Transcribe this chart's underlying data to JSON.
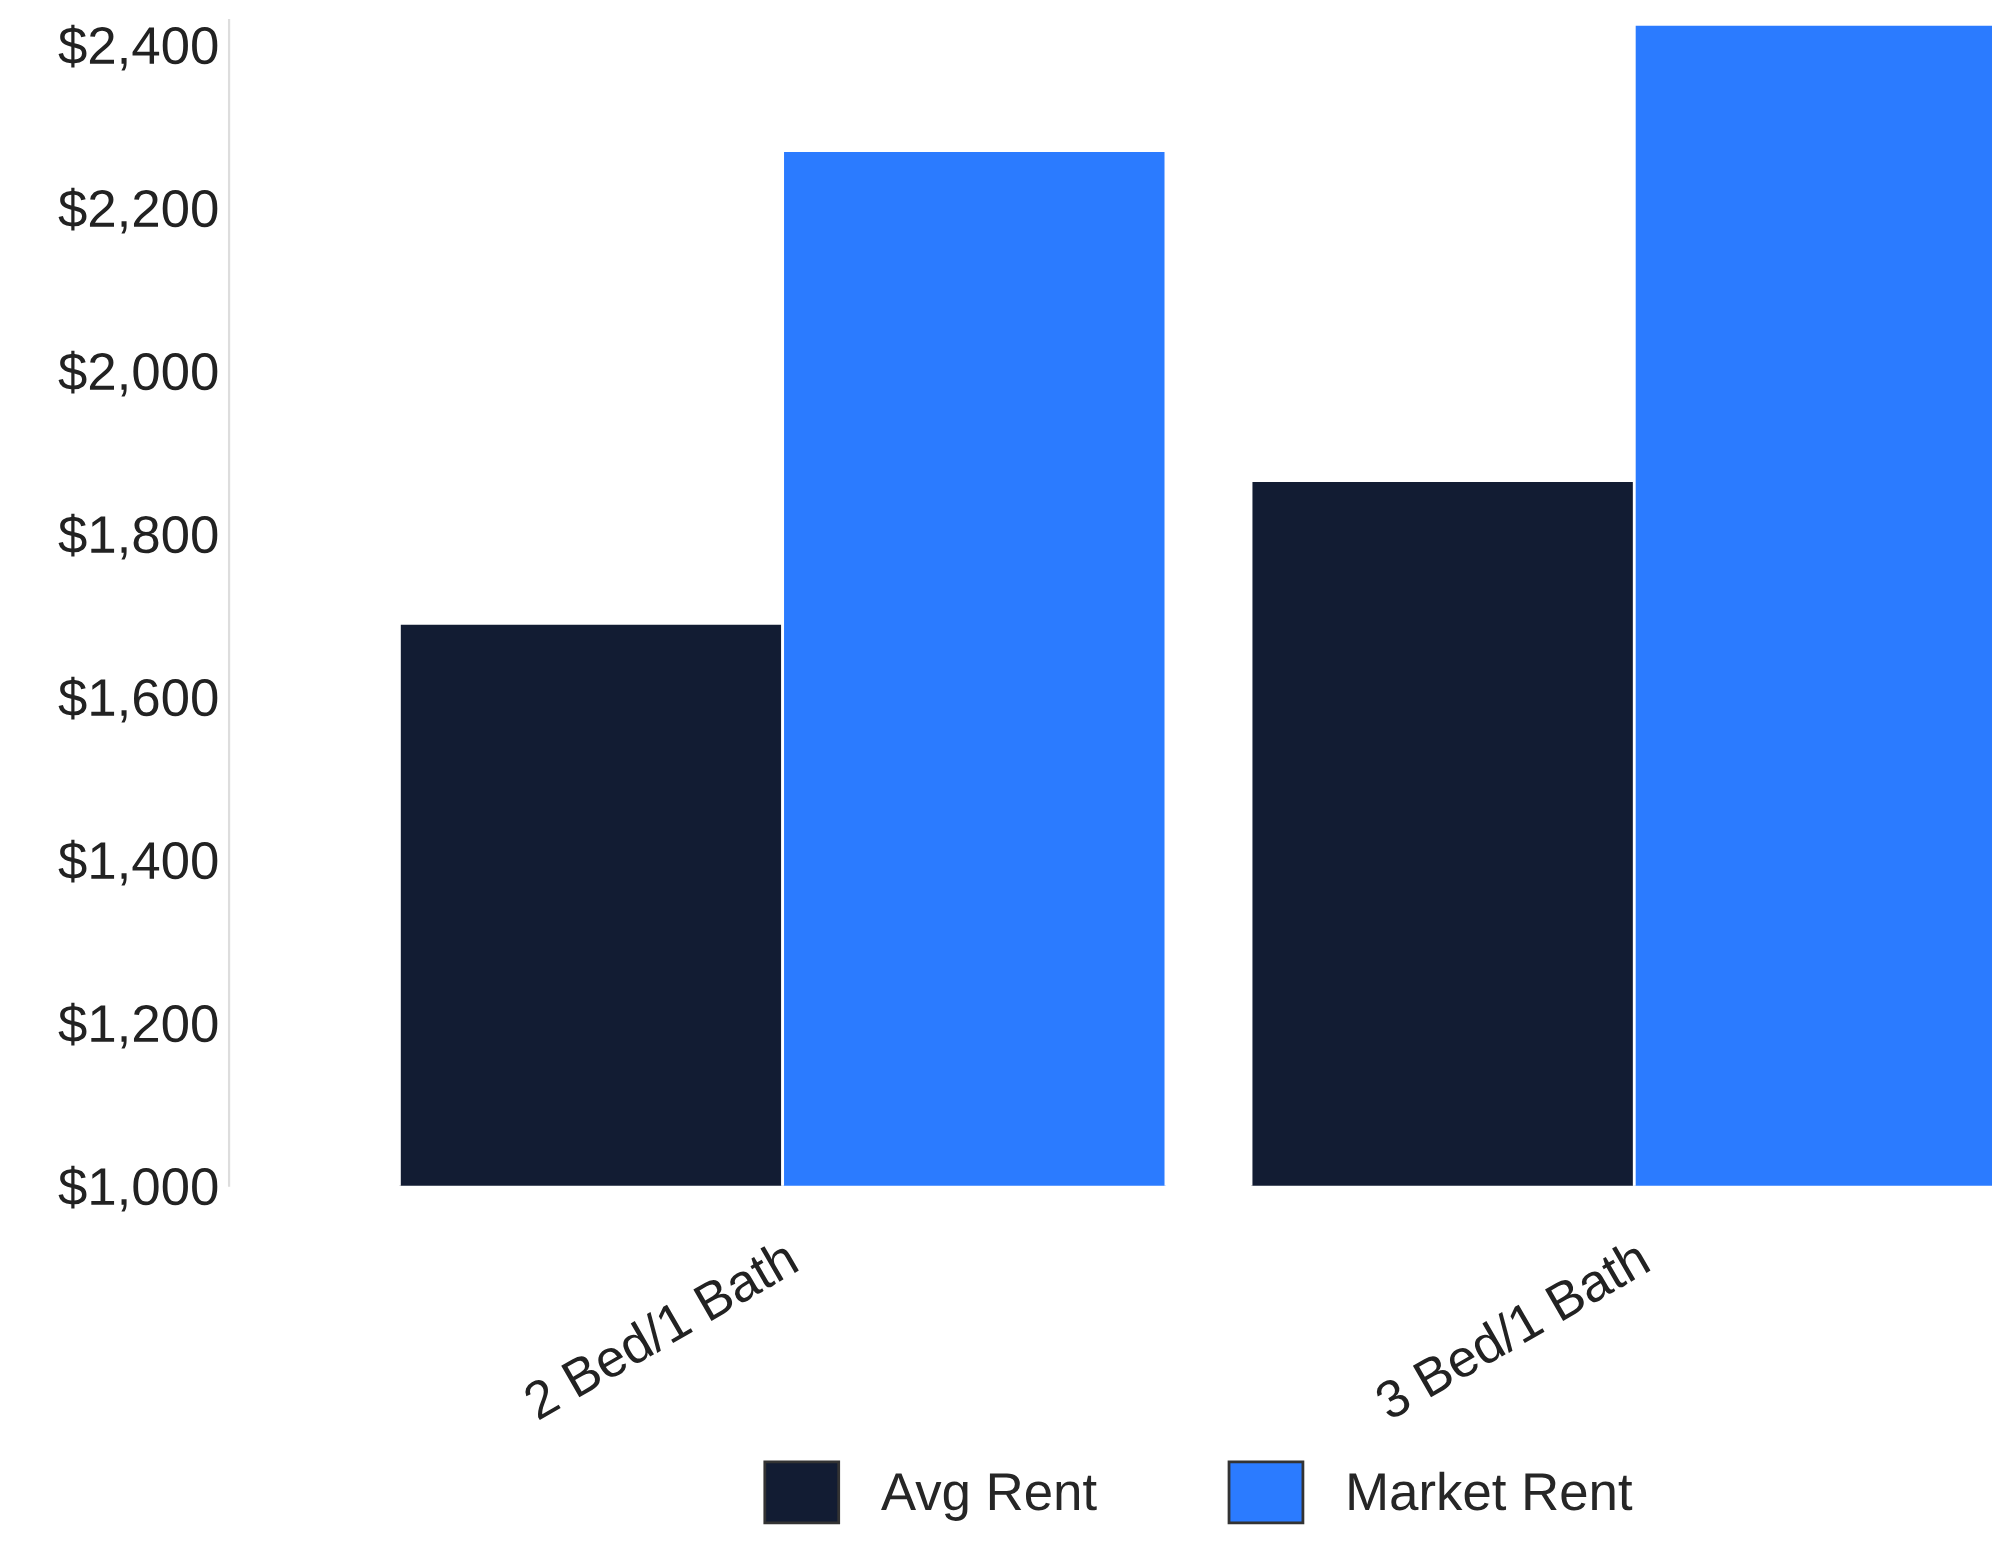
{
  "chart_data": {
    "type": "bar",
    "categories": [
      "2 Bed/1 Bath",
      "3 Bed/1 Bath"
    ],
    "series": [
      {
        "name": "Avg Rent",
        "color": "#121c33",
        "values": [
          1690,
          1865
        ]
      },
      {
        "name": "Market Rent",
        "color": "#2b7bff",
        "values": [
          2270,
          2425
        ]
      }
    ],
    "ylim": [
      1000,
      2430
    ],
    "yticks": [
      {
        "value": 1000,
        "label": "$1,000"
      },
      {
        "value": 1200,
        "label": "$1,200"
      },
      {
        "value": 1400,
        "label": "$1,400"
      },
      {
        "value": 1600,
        "label": "$1,600"
      },
      {
        "value": 1800,
        "label": "$1,800"
      },
      {
        "value": 2000,
        "label": "$2,000"
      },
      {
        "value": 2200,
        "label": "$2,200"
      },
      {
        "value": 2400,
        "label": "$2,400"
      }
    ],
    "grid": false,
    "legend": "bottom"
  }
}
